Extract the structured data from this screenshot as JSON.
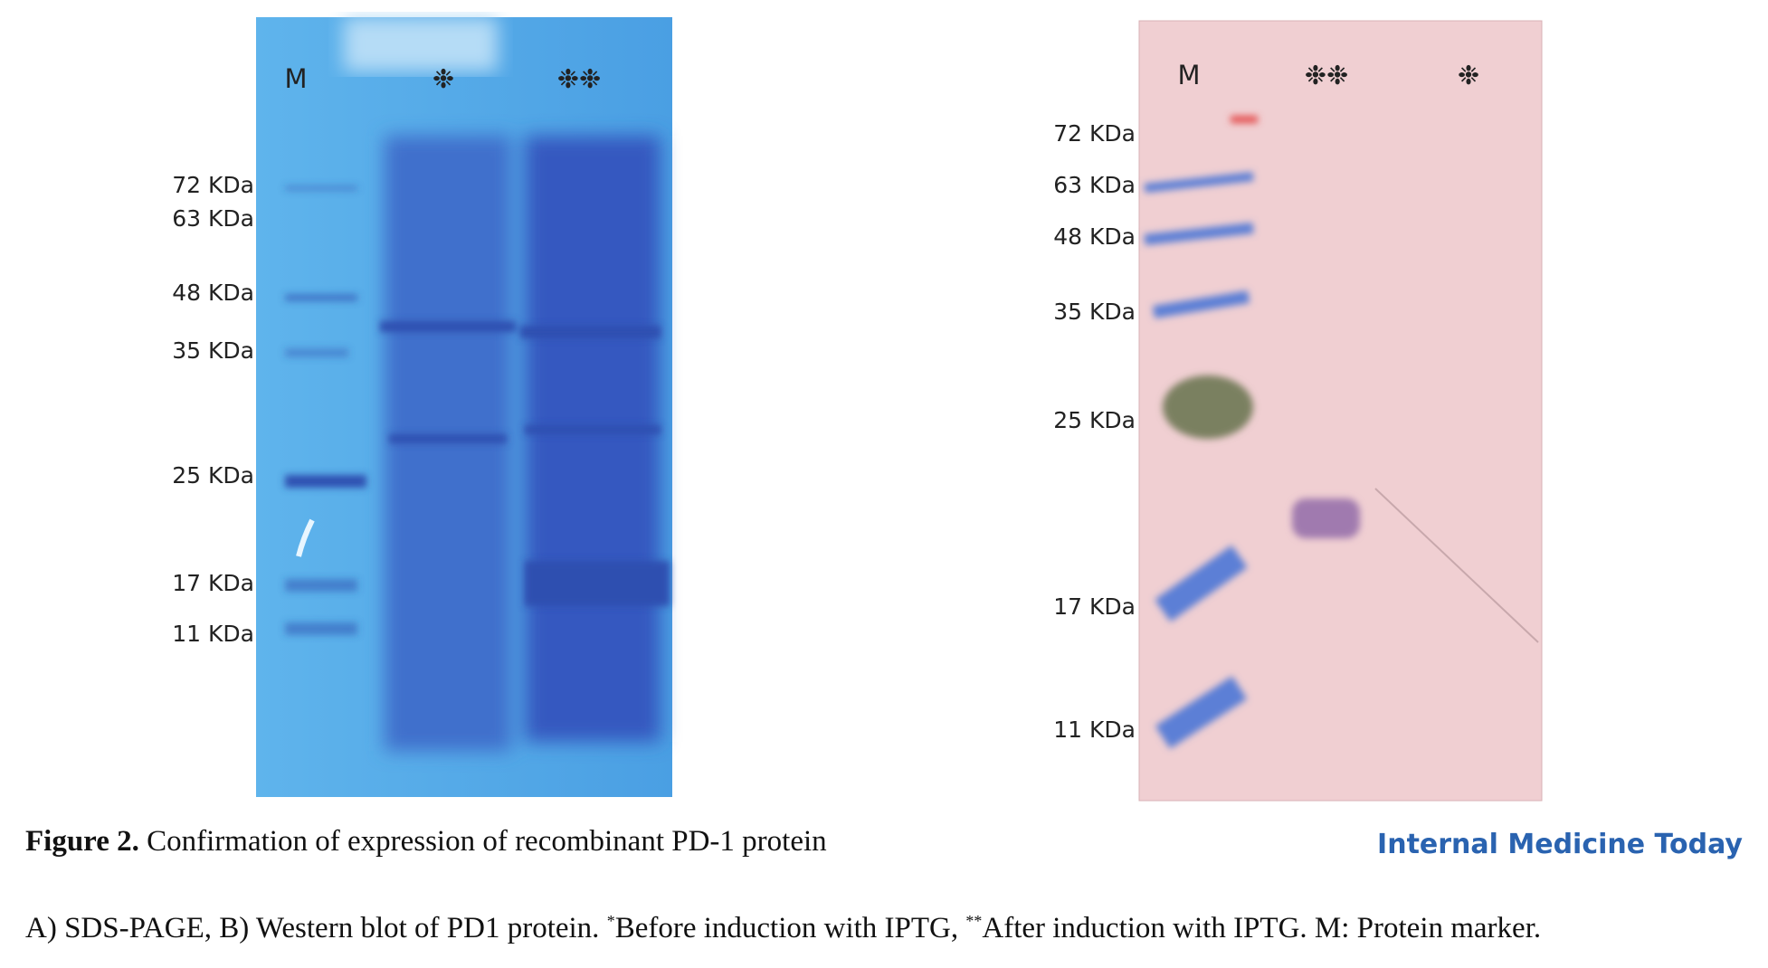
{
  "panel_a": {
    "lane_labels": [
      "M",
      "❉",
      "❉❉"
    ],
    "marker_labels": [
      "72 KDa",
      "63 KDa",
      "48 KDa",
      "35 KDa",
      "25 KDa",
      "17 KDa",
      "11 KDa"
    ]
  },
  "panel_b": {
    "lane_labels": [
      "M",
      "❉❉",
      "❉"
    ],
    "marker_labels": [
      "72 KDa",
      "63 KDa",
      "48 KDa",
      "35 KDa",
      "25 KDa",
      "17 KDa",
      "11 KDa"
    ]
  },
  "caption": {
    "label": "Figure 2.",
    "text": "Confirmation of expression of recombinant PD-1 protein"
  },
  "journal": "Internal Medicine Today",
  "note": {
    "part1": "A) SDS-PAGE, B) Western blot of PD1 protein. ",
    "mark1": "*",
    "part2": "Before induction with IPTG, ",
    "mark2": "**",
    "part3": "After induction with IPTG. M: Protein marker."
  }
}
